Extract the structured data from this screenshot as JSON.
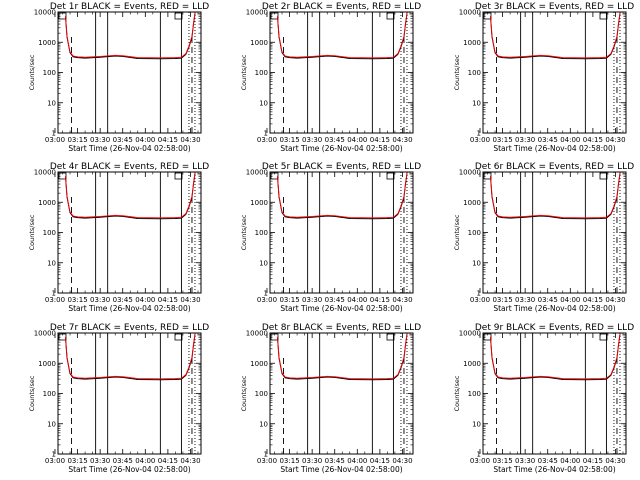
{
  "colors": {
    "events": "#000000",
    "lld": "#ff0000",
    "background": "#ffffff"
  },
  "chart_data": [
    {
      "type": "line",
      "title": "Det 1r BLACK = Events, RED = LLD",
      "xlabel": "Start Time (26-Nov-04 02:58:00)",
      "ylabel": "Counts/sec",
      "xticks": [
        "03:00",
        "03:15",
        "03:30",
        "03:45",
        "04:00",
        "04:15",
        "04:30"
      ],
      "yticks": [
        "1",
        "10",
        "100",
        "1000",
        "10000"
      ],
      "yscale": "log",
      "ylim": [
        1,
        10000
      ],
      "xlim_minutes": [
        2,
        97
      ],
      "solid_lines_min": [
        27,
        35,
        70,
        84
      ],
      "dashed_lines_min": [
        11,
        91
      ],
      "dotted_lines_min": [
        89,
        93
      ],
      "series": [
        {
          "name": "Events",
          "x_min": [
            7,
            8,
            10,
            12,
            15,
            20,
            30,
            40,
            45,
            55,
            70,
            80,
            84,
            87,
            89,
            91,
            92,
            93
          ],
          "values": [
            7000,
            1500,
            450,
            330,
            310,
            300,
            320,
            350,
            340,
            290,
            285,
            290,
            300,
            400,
            700,
            1500,
            4000,
            9000
          ]
        },
        {
          "name": "LLD",
          "x_min": [
            7,
            8,
            10,
            12,
            15,
            20,
            30,
            40,
            45,
            55,
            70,
            80,
            84,
            87,
            89,
            91,
            92,
            93
          ],
          "values": [
            7500,
            1600,
            480,
            350,
            330,
            320,
            340,
            370,
            360,
            310,
            305,
            310,
            320,
            420,
            750,
            1600,
            4200,
            9500
          ]
        }
      ]
    },
    {
      "type": "line",
      "title": "Det 2r BLACK = Events, RED = LLD",
      "xlabel": "Start Time (26-Nov-04 02:58:00)",
      "ylabel": "Counts/sec",
      "xticks": [
        "03:00",
        "03:15",
        "03:30",
        "03:45",
        "04:00",
        "04:15",
        "04:30"
      ],
      "yticks": [
        "1",
        "10",
        "100",
        "1000",
        "10000"
      ],
      "yscale": "log",
      "ylim": [
        1,
        10000
      ],
      "xlim_minutes": [
        2,
        97
      ],
      "solid_lines_min": [
        27,
        35,
        70,
        84
      ],
      "dashed_lines_min": [
        11,
        91
      ],
      "dotted_lines_min": [
        89,
        93
      ],
      "series": [
        {
          "name": "Events",
          "x_min": [
            7,
            8,
            10,
            12,
            15,
            20,
            30,
            40,
            45,
            55,
            70,
            80,
            84,
            87,
            89,
            91,
            92,
            93
          ],
          "values": [
            7000,
            1500,
            450,
            330,
            310,
            300,
            320,
            350,
            340,
            290,
            285,
            290,
            300,
            400,
            700,
            1500,
            4000,
            9000
          ]
        },
        {
          "name": "LLD",
          "x_min": [
            7,
            8,
            10,
            12,
            15,
            20,
            30,
            40,
            45,
            55,
            70,
            80,
            84,
            87,
            89,
            91,
            92,
            93
          ],
          "values": [
            7500,
            1600,
            480,
            350,
            330,
            320,
            340,
            370,
            360,
            310,
            305,
            310,
            320,
            420,
            750,
            1600,
            4200,
            9500
          ]
        }
      ]
    },
    {
      "type": "line",
      "title": "Det 3r BLACK = Events, RED = LLD",
      "xlabel": "Start Time (26-Nov-04 02:58:00)",
      "ylabel": "Counts/sec",
      "xticks": [
        "03:00",
        "03:15",
        "03:30",
        "03:45",
        "04:00",
        "04:15",
        "04:30"
      ],
      "yticks": [
        "1",
        "10",
        "100",
        "1000",
        "10000"
      ],
      "yscale": "log",
      "ylim": [
        1,
        10000
      ],
      "xlim_minutes": [
        2,
        97
      ],
      "solid_lines_min": [
        27,
        35,
        70,
        84
      ],
      "dashed_lines_min": [
        11,
        91
      ],
      "dotted_lines_min": [
        89,
        93
      ],
      "series": [
        {
          "name": "Events",
          "x_min": [
            7,
            8,
            10,
            12,
            15,
            20,
            30,
            40,
            45,
            55,
            70,
            80,
            84,
            87,
            89,
            91,
            92,
            93
          ],
          "values": [
            7000,
            1500,
            450,
            330,
            310,
            300,
            320,
            350,
            340,
            290,
            285,
            290,
            300,
            400,
            700,
            1500,
            4000,
            9000
          ]
        },
        {
          "name": "LLD",
          "x_min": [
            7,
            8,
            10,
            12,
            15,
            20,
            30,
            40,
            45,
            55,
            70,
            80,
            84,
            87,
            89,
            91,
            92,
            93
          ],
          "values": [
            7500,
            1600,
            480,
            350,
            330,
            320,
            340,
            370,
            360,
            310,
            305,
            310,
            320,
            420,
            750,
            1600,
            4200,
            9500
          ]
        }
      ]
    },
    {
      "type": "line",
      "title": "Det 4r BLACK = Events, RED = LLD",
      "xlabel": "Start Time (26-Nov-04 02:58:00)",
      "ylabel": "Counts/sec",
      "xticks": [
        "03:00",
        "03:15",
        "03:30",
        "03:45",
        "04:00",
        "04:15",
        "04:30"
      ],
      "yticks": [
        "1",
        "10",
        "100",
        "1000",
        "10000"
      ],
      "yscale": "log",
      "ylim": [
        1,
        10000
      ],
      "xlim_minutes": [
        2,
        97
      ],
      "solid_lines_min": [
        27,
        35,
        70,
        84
      ],
      "dashed_lines_min": [
        11,
        91
      ],
      "dotted_lines_min": [
        89,
        93
      ],
      "series": [
        {
          "name": "Events",
          "x_min": [
            7,
            8,
            10,
            12,
            15,
            20,
            30,
            40,
            45,
            55,
            70,
            80,
            84,
            87,
            89,
            91,
            92,
            93
          ],
          "values": [
            7000,
            1500,
            450,
            330,
            310,
            300,
            320,
            350,
            340,
            290,
            285,
            290,
            300,
            400,
            700,
            1500,
            4000,
            9000
          ]
        },
        {
          "name": "LLD",
          "x_min": [
            7,
            8,
            10,
            12,
            15,
            20,
            30,
            40,
            45,
            55,
            70,
            80,
            84,
            87,
            89,
            91,
            92,
            93
          ],
          "values": [
            7500,
            1600,
            480,
            350,
            330,
            320,
            340,
            370,
            360,
            310,
            305,
            310,
            320,
            420,
            750,
            1600,
            4200,
            9500
          ]
        }
      ]
    },
    {
      "type": "line",
      "title": "Det 5r BLACK = Events, RED = LLD",
      "xlabel": "Start Time (26-Nov-04 02:58:00)",
      "ylabel": "Counts/sec",
      "xticks": [
        "03:00",
        "03:15",
        "03:30",
        "03:45",
        "04:00",
        "04:15",
        "04:30"
      ],
      "yticks": [
        "1",
        "10",
        "100",
        "1000",
        "10000"
      ],
      "yscale": "log",
      "ylim": [
        1,
        10000
      ],
      "xlim_minutes": [
        2,
        97
      ],
      "solid_lines_min": [
        27,
        35,
        70,
        84
      ],
      "dashed_lines_min": [
        11,
        91
      ],
      "dotted_lines_min": [
        89,
        93
      ],
      "series": [
        {
          "name": "Events",
          "x_min": [
            7,
            8,
            10,
            12,
            15,
            20,
            30,
            40,
            45,
            55,
            70,
            80,
            84,
            87,
            89,
            91,
            92,
            93
          ],
          "values": [
            7000,
            1500,
            450,
            330,
            310,
            300,
            320,
            350,
            340,
            290,
            285,
            290,
            300,
            400,
            700,
            1500,
            4000,
            9000
          ]
        },
        {
          "name": "LLD",
          "x_min": [
            7,
            8,
            10,
            12,
            15,
            20,
            30,
            40,
            45,
            55,
            70,
            80,
            84,
            87,
            89,
            91,
            92,
            93
          ],
          "values": [
            7500,
            1600,
            480,
            350,
            330,
            320,
            340,
            370,
            360,
            310,
            305,
            310,
            320,
            420,
            750,
            1600,
            4200,
            9500
          ]
        }
      ]
    },
    {
      "type": "line",
      "title": "Det 6r BLACK = Events, RED = LLD",
      "xlabel": "Start Time (26-Nov-04 02:58:00)",
      "ylabel": "Counts/sec",
      "xticks": [
        "03:00",
        "03:15",
        "03:30",
        "03:45",
        "04:00",
        "04:15",
        "04:30"
      ],
      "yticks": [
        "1",
        "10",
        "100",
        "1000",
        "10000"
      ],
      "yscale": "log",
      "ylim": [
        1,
        10000
      ],
      "xlim_minutes": [
        2,
        97
      ],
      "solid_lines_min": [
        27,
        35,
        70,
        84
      ],
      "dashed_lines_min": [
        11,
        91
      ],
      "dotted_lines_min": [
        89,
        93
      ],
      "series": [
        {
          "name": "Events",
          "x_min": [
            7,
            8,
            10,
            12,
            15,
            20,
            30,
            40,
            45,
            55,
            70,
            80,
            84,
            87,
            89,
            91,
            92,
            93
          ],
          "values": [
            7000,
            1500,
            450,
            330,
            310,
            300,
            320,
            350,
            340,
            290,
            285,
            290,
            300,
            400,
            700,
            1500,
            4000,
            9000
          ]
        },
        {
          "name": "LLD",
          "x_min": [
            7,
            8,
            10,
            12,
            15,
            20,
            30,
            40,
            45,
            55,
            70,
            80,
            84,
            87,
            89,
            91,
            92,
            93
          ],
          "values": [
            7500,
            1600,
            480,
            350,
            330,
            320,
            340,
            370,
            360,
            310,
            305,
            310,
            320,
            420,
            750,
            1600,
            4200,
            9500
          ]
        }
      ]
    },
    {
      "type": "line",
      "title": "Det 7r BLACK = Events, RED = LLD",
      "xlabel": "Start Time (26-Nov-04 02:58:00)",
      "ylabel": "Counts/sec",
      "xticks": [
        "03:00",
        "03:15",
        "03:30",
        "03:45",
        "04:00",
        "04:15",
        "04:30"
      ],
      "yticks": [
        "1",
        "10",
        "100",
        "1000",
        "10000"
      ],
      "yscale": "log",
      "ylim": [
        1,
        10000
      ],
      "xlim_minutes": [
        2,
        97
      ],
      "solid_lines_min": [
        27,
        35,
        70,
        84
      ],
      "dashed_lines_min": [
        11,
        91
      ],
      "dotted_lines_min": [
        89,
        93
      ],
      "series": [
        {
          "name": "Events",
          "x_min": [
            7,
            8,
            10,
            12,
            15,
            20,
            30,
            40,
            45,
            55,
            70,
            80,
            84,
            87,
            89,
            91,
            92,
            93
          ],
          "values": [
            7000,
            1500,
            450,
            330,
            310,
            300,
            320,
            350,
            340,
            290,
            285,
            290,
            300,
            400,
            700,
            1500,
            4000,
            9000
          ]
        },
        {
          "name": "LLD",
          "x_min": [
            7,
            8,
            10,
            12,
            15,
            20,
            30,
            40,
            45,
            55,
            70,
            80,
            84,
            87,
            89,
            91,
            92,
            93
          ],
          "values": [
            7500,
            1600,
            480,
            350,
            330,
            320,
            340,
            370,
            360,
            310,
            305,
            310,
            320,
            420,
            750,
            1600,
            4200,
            9500
          ]
        }
      ]
    },
    {
      "type": "line",
      "title": "Det 8r BLACK = Events, RED = LLD",
      "xlabel": "Start Time (26-Nov-04 02:58:00)",
      "ylabel": "Counts/sec",
      "xticks": [
        "03:00",
        "03:15",
        "03:30",
        "03:45",
        "04:00",
        "04:15",
        "04:30"
      ],
      "yticks": [
        "1",
        "10",
        "100",
        "1000",
        "10000"
      ],
      "yscale": "log",
      "ylim": [
        1,
        10000
      ],
      "xlim_minutes": [
        2,
        97
      ],
      "solid_lines_min": [
        27,
        35,
        70,
        84
      ],
      "dashed_lines_min": [
        11,
        91
      ],
      "dotted_lines_min": [
        89,
        93
      ],
      "series": [
        {
          "name": "Events",
          "x_min": [
            7,
            8,
            10,
            12,
            15,
            20,
            30,
            40,
            45,
            55,
            70,
            80,
            84,
            87,
            89,
            91,
            92,
            93
          ],
          "values": [
            7000,
            1500,
            450,
            330,
            310,
            300,
            320,
            350,
            340,
            290,
            285,
            290,
            300,
            400,
            700,
            1500,
            4000,
            9000
          ]
        },
        {
          "name": "LLD",
          "x_min": [
            7,
            8,
            10,
            12,
            15,
            20,
            30,
            40,
            45,
            55,
            70,
            80,
            84,
            87,
            89,
            91,
            92,
            93
          ],
          "values": [
            7500,
            1600,
            480,
            350,
            330,
            320,
            340,
            370,
            360,
            310,
            305,
            310,
            320,
            420,
            750,
            1600,
            4200,
            9500
          ]
        }
      ]
    },
    {
      "type": "line",
      "title": "Det 9r BLACK = Events, RED = LLD",
      "xlabel": "Start Time (26-Nov-04 02:58:00)",
      "ylabel": "Counts/sec",
      "xticks": [
        "03:00",
        "03:15",
        "03:30",
        "03:45",
        "04:00",
        "04:15",
        "04:30"
      ],
      "yticks": [
        "1",
        "10",
        "100",
        "1000",
        "10000"
      ],
      "yscale": "log",
      "ylim": [
        1,
        10000
      ],
      "xlim_minutes": [
        2,
        97
      ],
      "solid_lines_min": [
        27,
        35,
        70,
        84
      ],
      "dashed_lines_min": [
        11,
        91
      ],
      "dotted_lines_min": [
        89,
        93
      ],
      "series": [
        {
          "name": "Events",
          "x_min": [
            7,
            8,
            10,
            12,
            15,
            20,
            30,
            40,
            45,
            55,
            70,
            80,
            84,
            87,
            89,
            91,
            92,
            93
          ],
          "values": [
            7000,
            1500,
            450,
            330,
            310,
            300,
            320,
            350,
            340,
            290,
            285,
            290,
            300,
            400,
            700,
            1500,
            4000,
            9000
          ]
        },
        {
          "name": "LLD",
          "x_min": [
            7,
            8,
            10,
            12,
            15,
            20,
            30,
            40,
            45,
            55,
            70,
            80,
            84,
            87,
            89,
            91,
            92,
            93
          ],
          "values": [
            7500,
            1600,
            480,
            350,
            330,
            320,
            340,
            370,
            360,
            310,
            305,
            310,
            320,
            420,
            750,
            1600,
            4200,
            9500
          ]
        }
      ]
    }
  ]
}
